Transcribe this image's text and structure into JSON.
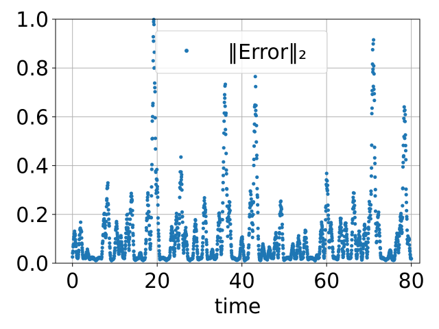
{
  "chart_data": {
    "type": "scatter",
    "title": "",
    "xlabel": "time",
    "ylabel": "",
    "xlim": [
      -4,
      82
    ],
    "ylim": [
      0,
      1.0
    ],
    "xticks": [
      0,
      20,
      40,
      60,
      80
    ],
    "yticks": [
      0.0,
      0.2,
      0.4,
      0.6,
      0.8,
      1.0
    ],
    "xtick_labels": [
      "0",
      "20",
      "40",
      "60",
      "80"
    ],
    "ytick_labels": [
      "0.0",
      "0.2",
      "0.4",
      "0.6",
      "0.8",
      "1.0"
    ],
    "grid": true,
    "legend_position": "top-center",
    "series_color": "#1f77b4",
    "series": [
      {
        "name": "‖Error‖₂",
        "peaks": [
          [
            0.5,
            0.12
          ],
          [
            1.9,
            0.15
          ],
          [
            3.5,
            0.05
          ],
          [
            7.5,
            0.19
          ],
          [
            8.3,
            0.3
          ],
          [
            10.4,
            0.15
          ],
          [
            11.4,
            0.1
          ],
          [
            12.9,
            0.18
          ],
          [
            13.9,
            0.28
          ],
          [
            16,
            0.04
          ],
          [
            17.8,
            0.26
          ],
          [
            19.2,
            0.9
          ],
          [
            19.9,
            0.34
          ],
          [
            23.5,
            0.14
          ],
          [
            24.6,
            0.18
          ],
          [
            25.6,
            0.38
          ],
          [
            26.7,
            0.13
          ],
          [
            29,
            0.16
          ],
          [
            31.2,
            0.26
          ],
          [
            33,
            0.05
          ],
          [
            34.6,
            0.19
          ],
          [
            36,
            0.68
          ],
          [
            37,
            0.24
          ],
          [
            40,
            0.1
          ],
          [
            42.1,
            0.28
          ],
          [
            43.2,
            0.68
          ],
          [
            45,
            0.07
          ],
          [
            46.5,
            0.06
          ],
          [
            48,
            0.11
          ],
          [
            49.2,
            0.25
          ],
          [
            52,
            0.07
          ],
          [
            53.4,
            0.1
          ],
          [
            55,
            0.12
          ],
          [
            57.7,
            0.03
          ],
          [
            58.8,
            0.15
          ],
          [
            60.1,
            0.34
          ],
          [
            61,
            0.15
          ],
          [
            63.3,
            0.17
          ],
          [
            64.5,
            0.16
          ],
          [
            66.4,
            0.26
          ],
          [
            67.7,
            0.12
          ],
          [
            69,
            0.14
          ],
          [
            70.2,
            0.24
          ],
          [
            71,
            0.83
          ],
          [
            72.2,
            0.2
          ],
          [
            75,
            0.05
          ],
          [
            76.6,
            0.11
          ],
          [
            77.5,
            0.19
          ],
          [
            78.4,
            0.59
          ],
          [
            79.3,
            0.11
          ]
        ]
      }
    ]
  }
}
